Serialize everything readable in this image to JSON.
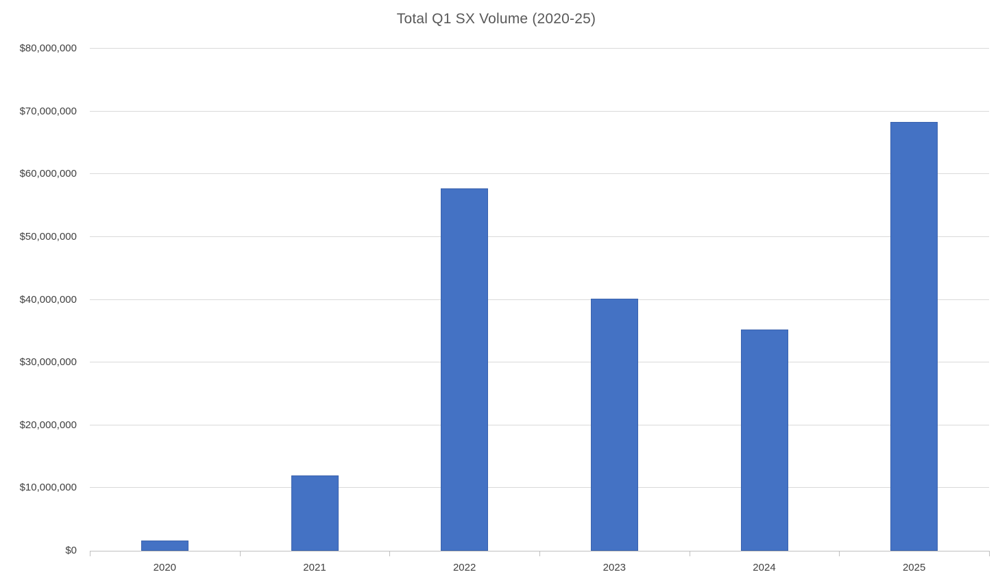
{
  "chart_data": {
    "type": "bar",
    "title": "Total Q1 SX Volume (2020-25)",
    "categories": [
      "2020",
      "2021",
      "2022",
      "2023",
      "2024",
      "2025"
    ],
    "values": [
      1600000,
      12000000,
      57700000,
      40200000,
      35300000,
      68300000
    ],
    "xlabel": "",
    "ylabel": "",
    "ylim": [
      0,
      80000000
    ],
    "ytick_interval": 10000000,
    "ytick_labels": [
      "$0",
      "$10,000,000",
      "$20,000,000",
      "$30,000,000",
      "$40,000,000",
      "$50,000,000",
      "$60,000,000",
      "$70,000,000",
      "$80,000,000"
    ],
    "grid": true,
    "legend": "none",
    "colors": {
      "bar_fill": "#4472C4",
      "bar_border": "#3A62AD",
      "gridline": "#D9D9D9",
      "axis_line": "#BFBFBF",
      "tick_label_text": "#404040",
      "title_text": "#595959",
      "background": "#FFFFFF"
    }
  }
}
